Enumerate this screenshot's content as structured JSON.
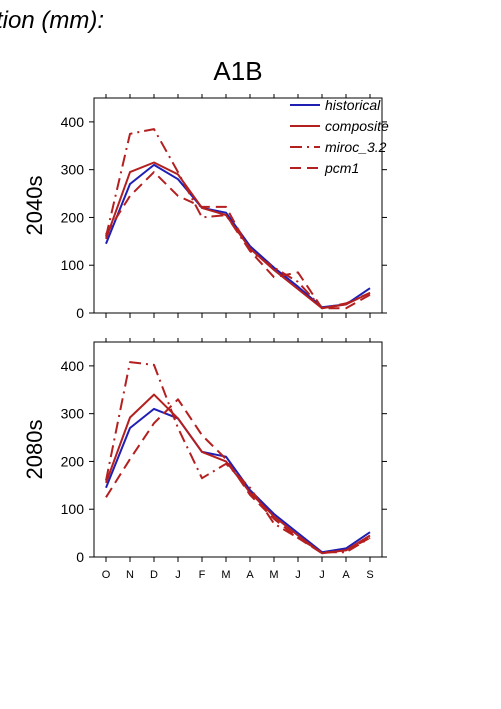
{
  "header": {
    "text": "tion (mm):"
  },
  "figure": {
    "title": "A1B"
  },
  "colors": {
    "historical": "#1f1fb4",
    "projection": "#b41f1f",
    "axis": "#000000"
  },
  "legend": {
    "placement": "top-right",
    "entries": [
      {
        "name": "historical",
        "style": "solid",
        "color": "#1f1fb4"
      },
      {
        "name": "composite",
        "style": "solid",
        "color": "#b41f1f"
      },
      {
        "name": "miroc_3.2",
        "style": "dashdot",
        "color": "#b41f1f"
      },
      {
        "name": "pcm1",
        "style": "dashed",
        "color": "#b41f1f"
      }
    ]
  },
  "chart_data": [
    {
      "type": "line",
      "title": "2040s",
      "categories": [
        "O",
        "N",
        "D",
        "J",
        "F",
        "M",
        "A",
        "M",
        "J",
        "J",
        "A",
        "S"
      ],
      "ylim": [
        0,
        450
      ],
      "yticks": [
        0,
        100,
        200,
        300,
        400
      ],
      "show_xtick_labels": false,
      "series": [
        {
          "name": "historical",
          "style": "solid",
          "values": [
            145,
            270,
            310,
            280,
            220,
            210,
            140,
            95,
            55,
            12,
            18,
            52
          ]
        },
        {
          "name": "composite",
          "style": "solid",
          "values": [
            155,
            295,
            315,
            290,
            220,
            205,
            135,
            90,
            50,
            10,
            18,
            42
          ]
        },
        {
          "name": "miroc_3.2",
          "style": "dashdot",
          "values": [
            160,
            375,
            385,
            295,
            200,
            205,
            130,
            95,
            65,
            10,
            20,
            42
          ]
        },
        {
          "name": "pcm1",
          "style": "dashed",
          "values": [
            165,
            245,
            295,
            245,
            222,
            222,
            130,
            75,
            85,
            10,
            10,
            38
          ]
        }
      ]
    },
    {
      "type": "line",
      "title": "2080s",
      "categories": [
        "O",
        "N",
        "D",
        "J",
        "F",
        "M",
        "A",
        "M",
        "J",
        "J",
        "A",
        "S"
      ],
      "ylim": [
        0,
        450
      ],
      "yticks": [
        0,
        100,
        200,
        300,
        400
      ],
      "show_xtick_labels": true,
      "series": [
        {
          "name": "historical",
          "style": "solid",
          "values": [
            145,
            270,
            310,
            290,
            220,
            210,
            140,
            90,
            50,
            10,
            18,
            52
          ]
        },
        {
          "name": "composite",
          "style": "solid",
          "values": [
            155,
            292,
            340,
            290,
            220,
            200,
            135,
            85,
            45,
            8,
            14,
            45
          ]
        },
        {
          "name": "miroc_3.2",
          "style": "dashdot",
          "values": [
            160,
            408,
            402,
            270,
            165,
            195,
            145,
            70,
            40,
            10,
            10,
            40
          ]
        },
        {
          "name": "pcm1",
          "style": "dashed",
          "values": [
            125,
            205,
            280,
            330,
            255,
            205,
            130,
            80,
            40,
            8,
            14,
            40
          ]
        }
      ]
    }
  ]
}
